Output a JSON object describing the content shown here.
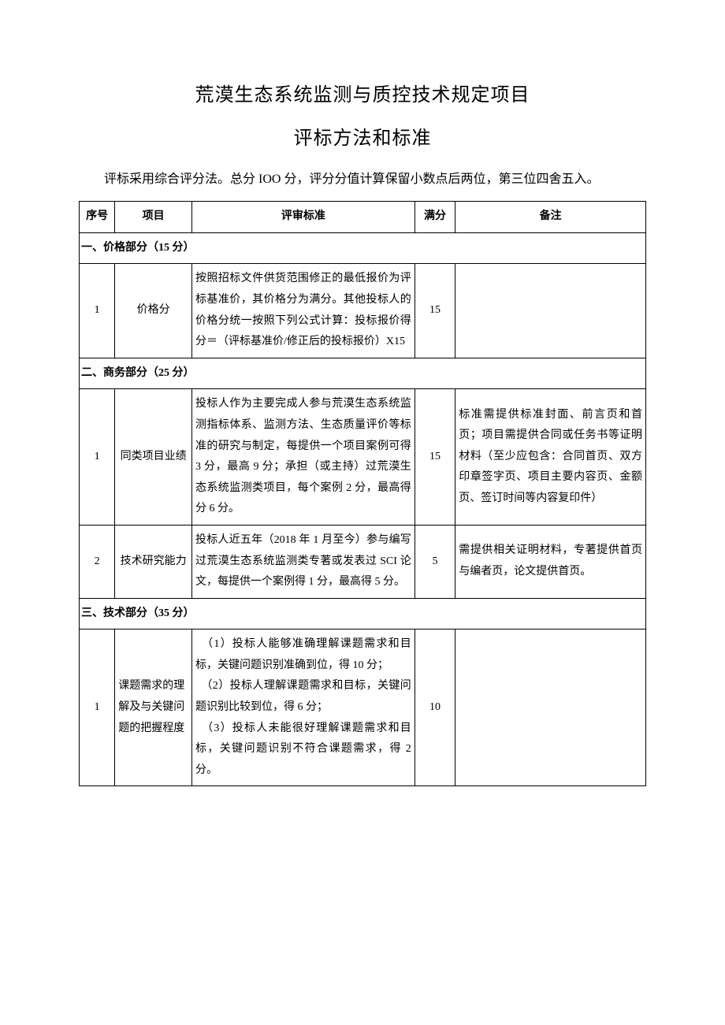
{
  "title1": "荒漠生态系统监测与质控技术规定项目",
  "title2": "评标方法和标准",
  "intro": "评标采用综合评分法。总分 IOO 分，评分分值计算保留小数点后两位，第三位四舍五入。",
  "header": {
    "seq": "序号",
    "project": "项目",
    "standard": "评审标准",
    "score": "满分",
    "note": "备注"
  },
  "sections": {
    "s1": "一、价格部分（15 分）",
    "s2": "二、商务部分（25 分）",
    "s3": "三、技术部分（35 分）"
  },
  "rows": {
    "price": {
      "seq": "1",
      "project": "价格分",
      "standard": "按照招标文件供货范围修正的最低报价为评标基准价，其价格分为满分。其他投标人的价格分统一按照下列公式计算：投标报价得分＝（评标基准价/修正后的投标报价）X15",
      "score": "15",
      "note": ""
    },
    "biz1": {
      "seq": "1",
      "project": "同类项目业绩",
      "standard": "投标人作为主要完成人参与荒漠生态系统监测指标体系、监测方法、生态质量评价等标准的研究与制定，每提供一个项目案例可得 3 分，最高 9 分；承担（或主持）过荒漠生态系统监测类项目，每个案例 2 分，最高得分 6 分。",
      "score": "15",
      "note": "标准需提供标准封面、前言页和首页；项目需提供合同或任务书等证明材料（至少应包含：合同首页、双方印章签字页、项目主要内容页、金额页、签订时间等内容复印件）"
    },
    "biz2": {
      "seq": "2",
      "project": "技术研究能力",
      "standard": "投标人近五年（2018 年 1 月至今）参与编写过荒漠生态系统监测类专著或发表过 SCI 论文，每提供一个案例得 1 分，最高得 5 分。",
      "score": "5",
      "note": "需提供相关证明材料，专著提供首页与编者页，论文提供首页。"
    },
    "tech1": {
      "seq": "1",
      "project": "课题需求的理解及与关键问题的把握程度",
      "standard": "　（1）投标人能够准确理解课题需求和目标，关键问题识别准确到位，得 10 分；\n　（2）投标人理解课题需求和目标，关键问题识别比较到位，得 6 分；\n　（3）投标人未能很好理解课题需求和目标，关键问题识别不符合课题需求，得 2 分。",
      "score": "10",
      "note": ""
    }
  }
}
